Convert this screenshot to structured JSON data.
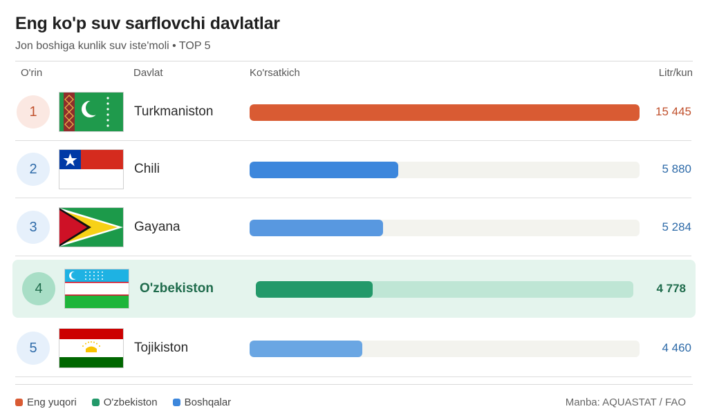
{
  "title": "Eng ko'p suv sarflovchi davlatlar",
  "subtitle": "Jon boshiga kunlik suv iste'moli • TOP 5",
  "headers": {
    "rank": "O'rin",
    "country": "Davlat",
    "indicator": "Ko'rsatkich",
    "unit": "Litr/kun"
  },
  "colors": {
    "top": "#d95b33",
    "uzbekistan": "#23996a",
    "others": "#3d87dc"
  },
  "chart_data": {
    "type": "bar",
    "orientation": "horizontal",
    "title": "Eng ko'p suv sarflovchi davlatlar",
    "subtitle": "Jon boshiga kunlik suv iste'moli • TOP 5",
    "categories": [
      "Turkmaniston",
      "Chili",
      "Gayana",
      "O'zbekiston",
      "Tojikiston"
    ],
    "values": [
      15445,
      5880,
      5284,
      4778,
      4460
    ],
    "value_labels": [
      "15 445",
      "5 880",
      "5 284",
      "4 778",
      "4 460"
    ],
    "ranks": [
      "1",
      "2",
      "3",
      "4",
      "5"
    ],
    "groups": [
      "top",
      "others",
      "others",
      "uzbekistan",
      "others"
    ],
    "unit": "Litr/kun",
    "xlim": [
      0,
      15445
    ],
    "grid": false,
    "legend": [
      {
        "label": "Eng yuqori",
        "color": "#d95b33"
      },
      {
        "label": "O'zbekiston",
        "color": "#23996a"
      },
      {
        "label": "Boshqalar",
        "color": "#3d87dc"
      }
    ],
    "legend_position": "bottom-left"
  },
  "source": "Manba: AQUASTAT / FAO"
}
